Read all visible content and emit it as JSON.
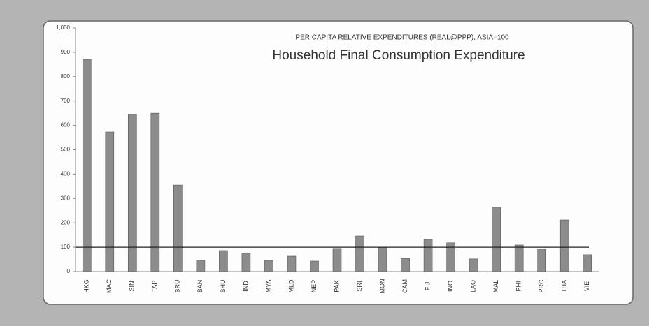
{
  "chart_data": {
    "type": "bar",
    "title": "PER CAPITA RELATIVE EXPENDITURES (REAL@PPP), ASIA=100",
    "subtitle": "Household Final Consumption Expenditure",
    "categories": [
      "HKG",
      "MAC",
      "SIN",
      "TAP",
      "BRU",
      "BAN",
      "BHU",
      "IND",
      "MYA",
      "MLD",
      "NEP",
      "PAK",
      "SRI",
      "MON",
      "CAM",
      "FIJ",
      "INO",
      "LAO",
      "MAL",
      "PHI",
      "PRC",
      "THA",
      "VIE"
    ],
    "values": [
      871,
      573,
      645,
      650,
      355,
      46,
      86,
      75,
      46,
      63,
      43,
      95,
      146,
      100,
      54,
      132,
      118,
      52,
      264,
      109,
      92,
      212,
      69
    ],
    "color": "#8c8c8c",
    "reference_line": 100,
    "ylim": [
      0,
      1000
    ],
    "yticks": [
      0,
      100,
      200,
      300,
      400,
      500,
      600,
      700,
      800,
      900,
      {
        "value": 1000,
        "label": "1,000"
      }
    ],
    "grid": false
  }
}
